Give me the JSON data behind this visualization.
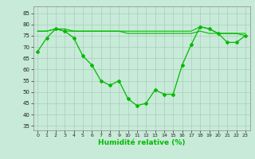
{
  "title": "",
  "xlabel": "Humidité relative (%)",
  "ylabel": "",
  "background_color": "#c8ead8",
  "grid_color": "#aaccbb",
  "line_color": "#00bb00",
  "marker_color": "#00bb00",
  "xlim": [
    -0.5,
    23.5
  ],
  "ylim": [
    33,
    88
  ],
  "yticks": [
    35,
    40,
    45,
    50,
    55,
    60,
    65,
    70,
    75,
    80,
    85
  ],
  "xticks": [
    0,
    1,
    2,
    3,
    4,
    5,
    6,
    7,
    8,
    9,
    10,
    11,
    12,
    13,
    14,
    15,
    16,
    17,
    18,
    19,
    20,
    21,
    22,
    23
  ],
  "series1": [
    68,
    74,
    78,
    77,
    74,
    66,
    62,
    55,
    53,
    55,
    47,
    44,
    45,
    51,
    49,
    49,
    62,
    71,
    79,
    78,
    76,
    72,
    72,
    75
  ],
  "series2": [
    77,
    77,
    78,
    77,
    77,
    77,
    77,
    77,
    77,
    77,
    76,
    76,
    76,
    76,
    76,
    76,
    76,
    76,
    77,
    76,
    76,
    76,
    76,
    76
  ],
  "series3": [
    77,
    77,
    78,
    78,
    77,
    77,
    77,
    77,
    77,
    77,
    77,
    77,
    77,
    77,
    77,
    77,
    77,
    77,
    79,
    78,
    76,
    76,
    76,
    75
  ]
}
